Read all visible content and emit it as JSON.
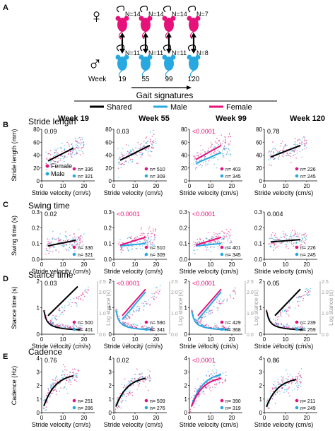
{
  "panels": {
    "A": "A",
    "B": "B",
    "C": "C",
    "D": "D",
    "E": "E"
  },
  "colors": {
    "female": "#e6127a",
    "male": "#27a8e0",
    "shared": "#000000"
  },
  "cohort": {
    "female_symbol": "♀",
    "male_symbol": "♂",
    "week_label": "Week",
    "weeks": [
      "19",
      "55",
      "99",
      "120"
    ],
    "female_n": [
      "N=14",
      "N=14",
      "N=14",
      "N=7"
    ],
    "male_n": [
      "N=11",
      "N=11",
      "N=11",
      "N=8"
    ]
  },
  "gait": {
    "title": "Gait signatures",
    "legend": [
      {
        "label": "Shared",
        "color": "#000000"
      },
      {
        "label": "Male",
        "color": "#27a8e0"
      },
      {
        "label": "Female",
        "color": "#e6127a"
      }
    ]
  },
  "column_titles": [
    "Week 19",
    "Week 55",
    "Week 99",
    "Week 120"
  ],
  "legend_labels": {
    "female": "Female",
    "male": "Male"
  },
  "chart_data": [
    {
      "panel": "B",
      "title": "Stride length",
      "type": "scatter",
      "xlabel": "Stride velocity (cm/s)",
      "ylabel": "Stride length (mm)",
      "xlim": [
        0,
        25
      ],
      "ylim": [
        0,
        80
      ],
      "xticks": [
        "0",
        "10",
        "20"
      ],
      "yticks": [
        "0",
        "20",
        "40",
        "60",
        "80"
      ],
      "plots": [
        {
          "week": "Week 19",
          "p": "0.09",
          "p_sig": false,
          "n_female": "n= 336",
          "n_male": "n= 321",
          "show_legend": true,
          "lines": [
            {
              "group": "shared",
              "x": [
                3,
                15
              ],
              "y": [
                31,
                51
              ]
            }
          ]
        },
        {
          "week": "Week 55",
          "p": "0.03",
          "p_sig": false,
          "n_female": "n= 510",
          "n_male": "n= 309",
          "lines": [
            {
              "group": "shared",
              "x": [
                3,
                17
              ],
              "y": [
                32,
                55
              ]
            }
          ]
        },
        {
          "week": "Week 99",
          "p": "<0.0001",
          "p_sig": true,
          "n_female": "n= 403",
          "n_male": "n= 345",
          "lines": [
            {
              "group": "male",
              "x": [
                3,
                15
              ],
              "y": [
                27,
                44
              ]
            },
            {
              "group": "female",
              "x": [
                3,
                15
              ],
              "y": [
                33,
                55
              ]
            }
          ]
        },
        {
          "week": "Week 120",
          "p": "0.78",
          "p_sig": false,
          "n_female": "n= 226",
          "n_male": "n= 245",
          "lines": [
            {
              "group": "shared",
              "x": [
                3,
                17
              ],
              "y": [
                37,
                55
              ]
            }
          ]
        }
      ]
    },
    {
      "panel": "C",
      "title": "Swing time",
      "type": "scatter",
      "xlabel": "Stride velocity (cm/s)",
      "ylabel": "Swing time (s)",
      "xlim": [
        0,
        25
      ],
      "ylim": [
        0,
        0.3
      ],
      "xticks": [
        "0",
        "10",
        "20"
      ],
      "yticks": [
        "0.0",
        "0.1",
        "0.2",
        "0.3"
      ],
      "plots": [
        {
          "week": "Week 19",
          "p": "0.02",
          "p_sig": false,
          "n_female": "n= 336",
          "n_male": "n= 321",
          "lines": [
            {
              "group": "shared",
              "x": [
                3,
                16
              ],
              "y": [
                0.085,
                0.12
              ]
            }
          ]
        },
        {
          "week": "Week 55",
          "p": "<0.0001",
          "p_sig": true,
          "n_female": "n= 510",
          "n_male": "n= 309",
          "lines": [
            {
              "group": "male",
              "x": [
                3,
                15
              ],
              "y": [
                0.085,
                0.1
              ]
            },
            {
              "group": "female",
              "x": [
                3,
                15
              ],
              "y": [
                0.09,
                0.14
              ]
            }
          ]
        },
        {
          "week": "Week 99",
          "p": "<0.0001",
          "p_sig": true,
          "n_female": "n= 401",
          "n_male": "n= 345",
          "lines": [
            {
              "group": "male",
              "x": [
                3,
                15
              ],
              "y": [
                0.085,
                0.1
              ]
            },
            {
              "group": "female",
              "x": [
                3,
                15
              ],
              "y": [
                0.09,
                0.14
              ]
            }
          ]
        },
        {
          "week": "Week 120",
          "p": "0.004",
          "p_sig": false,
          "n_female": "n= 226",
          "n_male": "n= 245",
          "lines": [
            {
              "group": "shared",
              "x": [
                3,
                17
              ],
              "y": [
                0.11,
                0.125
              ]
            }
          ]
        }
      ]
    },
    {
      "panel": "D",
      "title": "Stance time",
      "type": "scatter",
      "xlabel": "Stride velocity (cm/s)",
      "ylabel": "Stance time (s)",
      "xlim": [
        0,
        25
      ],
      "ylim": [
        0,
        2
      ],
      "xticks": [
        "0",
        "10",
        "20"
      ],
      "yticks": [
        "0",
        "1",
        "2"
      ],
      "right_axis": {
        "label": "Log stance (s)",
        "lim": [
          0,
          2.5
        ],
        "ticks": [
          "0.0",
          "0.5",
          "1.0",
          "1.5",
          "2.0",
          "2.5"
        ]
      },
      "top_axis": {
        "lim": [
          0,
          2.5
        ],
        "ticks": [
          "0.0",
          "0.5",
          "1.0",
          "1.5",
          "2.0",
          "2.5"
        ]
      },
      "plots": [
        {
          "week": "Week 19",
          "p": "0.03",
          "p_sig": false,
          "n_female": "n= 500",
          "n_male": "n= 401",
          "lines": [
            {
              "group": "shared",
              "x": [
                3,
                17
              ],
              "y": [
                0.7,
                1.8
              ]
            }
          ]
        },
        {
          "week": "Week 55",
          "p": "<0.0001",
          "p_sig": true,
          "n_female": "n= 590",
          "n_male": "n= 341",
          "lines": [
            {
              "group": "female",
              "x": [
                4,
                15
              ],
              "y": [
                0.7,
                1.7
              ]
            },
            {
              "group": "male",
              "x": [
                4,
                15
              ],
              "y": [
                0.55,
                1.6
              ]
            }
          ]
        },
        {
          "week": "Week 99",
          "p": "<0.0001",
          "p_sig": true,
          "n_female": "n= 429",
          "n_male": "n= 368",
          "lines": [
            {
              "group": "female",
              "x": [
                4,
                15
              ],
              "y": [
                0.7,
                1.7
              ]
            },
            {
              "group": "male",
              "x": [
                4,
                15
              ],
              "y": [
                0.55,
                1.6
              ]
            }
          ]
        },
        {
          "week": "Week 120",
          "p": "0.05",
          "p_sig": false,
          "n_female": "n= 239",
          "n_male": "n= 259",
          "lines": [
            {
              "group": "shared",
              "x": [
                5,
                17
              ],
              "y": [
                0.7,
                1.7
              ]
            }
          ]
        }
      ]
    },
    {
      "panel": "E",
      "title": "Cadence",
      "type": "scatter",
      "xlabel": "Stride velocity (cm/s)",
      "ylabel": "Cadence (Hz)",
      "xlim": [
        0,
        25
      ],
      "ylim": [
        0,
        4
      ],
      "xticks": [
        "0",
        "10",
        "20"
      ],
      "yticks": [
        "0",
        "1",
        "2",
        "3",
        "4"
      ],
      "plots": [
        {
          "week": "Week 19",
          "p": "0.76",
          "p_sig": false,
          "n_female": "n= 251",
          "n_male": "n= 286",
          "lines": [
            {
              "group": "shared",
              "curve": true,
              "x": [
                1,
                15
              ],
              "y": [
                0.3,
                2.9
              ]
            }
          ]
        },
        {
          "week": "Week 55",
          "p": "0.02",
          "p_sig": false,
          "n_female": "n= 509",
          "n_male": "n= 276",
          "lines": [
            {
              "group": "shared",
              "curve": true,
              "x": [
                1,
                15
              ],
              "y": [
                0.3,
                2.7
              ]
            }
          ]
        },
        {
          "week": "Week 99",
          "p": "<0.0001",
          "p_sig": true,
          "n_female": "n= 390",
          "n_male": "n= 319",
          "lines": [
            {
              "group": "male",
              "curve": true,
              "x": [
                1,
                15
              ],
              "y": [
                0.3,
                3.0
              ]
            },
            {
              "group": "female",
              "curve": true,
              "x": [
                1,
                15
              ],
              "y": [
                0.3,
                2.7
              ]
            }
          ]
        },
        {
          "week": "Week 120",
          "p": "0.86",
          "p_sig": false,
          "n_female": "n= 211",
          "n_male": "n= 249",
          "lines": [
            {
              "group": "shared",
              "curve": true,
              "x": [
                1,
                15
              ],
              "y": [
                0.3,
                2.6
              ]
            }
          ]
        }
      ]
    }
  ]
}
